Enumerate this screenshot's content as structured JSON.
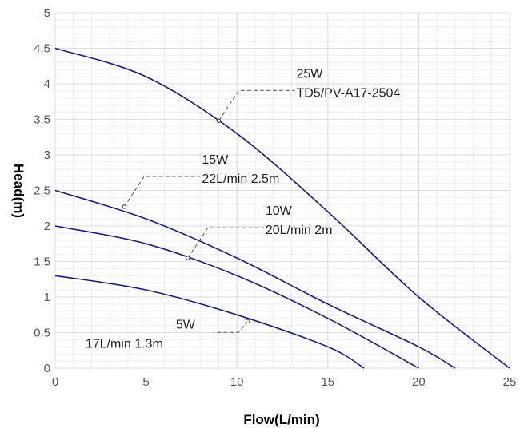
{
  "chart_data": {
    "type": "line",
    "title": "",
    "xlabel": "Flow(L/min)",
    "ylabel": "Head(m)",
    "xlim": [
      0,
      25
    ],
    "ylim": [
      0,
      5
    ],
    "x_ticks": [
      "0",
      "5",
      "10",
      "15",
      "20",
      "25"
    ],
    "y_ticks": [
      "0",
      "0.5",
      "1",
      "1.5",
      "2",
      "2.5",
      "3",
      "3.5",
      "4",
      "4.5",
      "5"
    ],
    "grid": true,
    "colors": {
      "curve": "#1a1a8c",
      "grid_major": "#dddddd",
      "grid_minor": "#eeeeee",
      "leader": "#555555"
    },
    "series": [
      {
        "points": [
          [
            0,
            4.5
          ],
          [
            5,
            4.1
          ],
          [
            10,
            3.3
          ],
          [
            15,
            2.2
          ],
          [
            20,
            1.0
          ],
          [
            25,
            0
          ]
        ],
        "annotation": {
          "line1": "25W",
          "line2": "TD5/PV-A17-2504",
          "point": [
            9,
            3.48
          ]
        }
      },
      {
        "points": [
          [
            0,
            2.5
          ],
          [
            5,
            2.1
          ],
          [
            10,
            1.55
          ],
          [
            15,
            0.9
          ],
          [
            20,
            0.3
          ],
          [
            22,
            0
          ]
        ],
        "annotation": {
          "line1": "15W",
          "line2": "22L/min 2.5m",
          "point": [
            3.8,
            2.27
          ]
        }
      },
      {
        "points": [
          [
            0,
            2.0
          ],
          [
            5,
            1.75
          ],
          [
            10,
            1.3
          ],
          [
            15,
            0.7
          ],
          [
            20,
            0
          ]
        ],
        "annotation": {
          "line1": "10W",
          "line2": "20L/min 2m",
          "point": [
            7.3,
            1.55
          ]
        }
      },
      {
        "points": [
          [
            0,
            1.3
          ],
          [
            5,
            1.1
          ],
          [
            10,
            0.75
          ],
          [
            15,
            0.3
          ],
          [
            17,
            0
          ]
        ],
        "annotation": {
          "line1": "5W",
          "line2": "17L/min 1.3m",
          "point": [
            10.6,
            0.66
          ]
        }
      }
    ]
  }
}
